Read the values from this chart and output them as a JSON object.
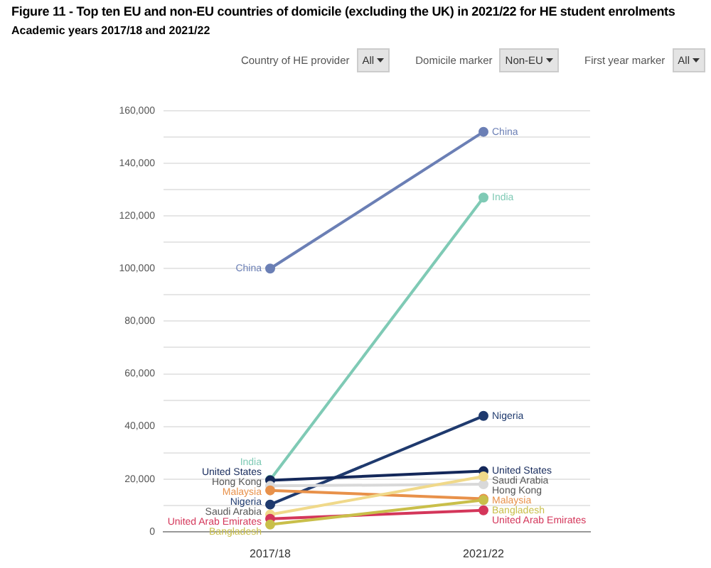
{
  "chart_data": {
    "type": "line",
    "title": "Figure 11 - Top ten EU and non-EU countries of domicile (excluding the UK) in 2021/22 for HE student enrolments",
    "subtitle": "Academic years 2017/18 and 2021/22",
    "annotations": [
      "Country of HE provider",
      "All",
      "Domicile marker",
      "Non-EU",
      "First year marker",
      "All"
    ],
    "categories": [
      "2017/18",
      "2021/22"
    ],
    "series": [
      {
        "name": "China",
        "color": "#6b7fb5",
        "values": [
          100000,
          152000
        ]
      },
      {
        "name": "India",
        "color": "#7fcab5",
        "values": [
          19700,
          127000
        ]
      },
      {
        "name": "Nigeria",
        "color": "#1f3a6e",
        "values": [
          10300,
          44000
        ]
      },
      {
        "name": "United States",
        "color": "#14285a",
        "values": [
          19500,
          23000
        ]
      },
      {
        "name": "Hong Kong",
        "color": "#d9d9d9",
        "values": [
          17400,
          18000
        ]
      },
      {
        "name": "Malaysia",
        "color": "#e8914a",
        "values": [
          15700,
          12500
        ]
      },
      {
        "name": "Saudi Arabia",
        "color": "#f0d98a",
        "values": [
          6500,
          21000
        ]
      },
      {
        "name": "United Arab Emirates",
        "color": "#d4365a",
        "values": [
          4900,
          8100
        ]
      },
      {
        "name": "Bangladesh",
        "color": "#c9bf4a",
        "values": [
          2700,
          12000
        ]
      }
    ],
    "ylim": [
      0,
      160000
    ],
    "yticks": [
      0,
      {
        "value": 10000,
        "label": null
      },
      {
        "value": 20000,
        "label": "20,000"
      },
      {
        "value": 30000,
        "label": null
      },
      {
        "value": 40000,
        "label": "40,000"
      },
      {
        "value": 50000,
        "label": null
      },
      {
        "value": 60000,
        "label": "60,000"
      },
      {
        "value": 70000,
        "label": null
      },
      {
        "value": 80000,
        "label": "80,000"
      },
      {
        "value": 90000,
        "label": null
      },
      {
        "value": 100000,
        "label": "100,000"
      },
      {
        "value": 110000,
        "label": null
      },
      {
        "value": 120000,
        "label": "120,000"
      },
      {
        "value": 130000,
        "label": null
      },
      {
        "value": 140000,
        "label": "140,000"
      },
      {
        "value": 150000,
        "label": null
      },
      {
        "value": 160000,
        "label": "160,000"
      }
    ],
    "grid": "y",
    "legend": false,
    "marker": "circle",
    "line_style": "solid"
  }
}
